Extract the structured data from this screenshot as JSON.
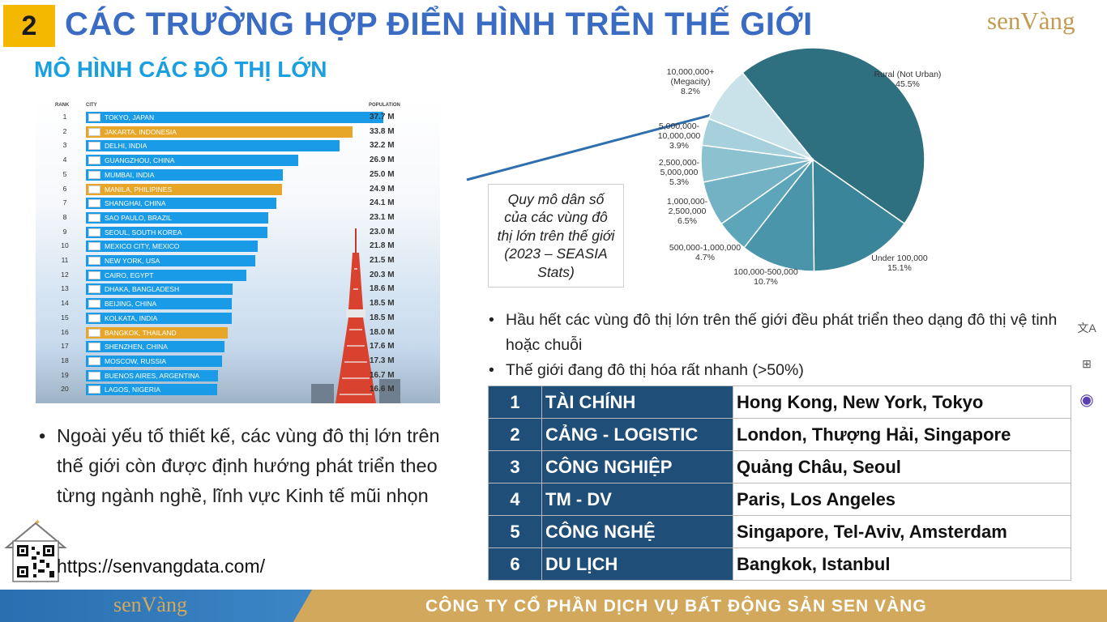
{
  "header": {
    "section_number": "2",
    "title": "CÁC TRƯỜNG HỢP ĐIỂN HÌNH TRÊN THẾ GIỚI",
    "subtitle": "MÔ HÌNH CÁC ĐÔ THỊ LỚN",
    "logo": "senVàng"
  },
  "ranking": {
    "headers": {
      "rank": "RANK",
      "city": "CITY",
      "population": "POPULATION"
    },
    "rows": [
      {
        "rank": "1",
        "city": "TOKYO, JAPAN",
        "population": "37.7 M",
        "value": 37.7,
        "color": "#1a9be8"
      },
      {
        "rank": "2",
        "city": "JAKARTA, INDONESIA",
        "population": "33.8 M",
        "value": 33.8,
        "color": "#e8a628"
      },
      {
        "rank": "3",
        "city": "DELHI, INDIA",
        "population": "32.2 M",
        "value": 32.2,
        "color": "#1a9be8"
      },
      {
        "rank": "4",
        "city": "GUANGZHOU, CHINA",
        "population": "26.9 M",
        "value": 26.9,
        "color": "#1a9be8"
      },
      {
        "rank": "5",
        "city": "MUMBAI, INDIA",
        "population": "25.0 M",
        "value": 25.0,
        "color": "#1a9be8"
      },
      {
        "rank": "6",
        "city": "MANILA, PHILIPINES",
        "population": "24.9 M",
        "value": 24.9,
        "color": "#e8a628"
      },
      {
        "rank": "7",
        "city": "SHANGHAI, CHINA",
        "population": "24.1 M",
        "value": 24.1,
        "color": "#1a9be8"
      },
      {
        "rank": "8",
        "city": "SAO PAULO, BRAZIL",
        "population": "23.1 M",
        "value": 23.1,
        "color": "#1a9be8"
      },
      {
        "rank": "9",
        "city": "SEOUL, SOUTH KOREA",
        "population": "23.0 M",
        "value": 23.0,
        "color": "#1a9be8"
      },
      {
        "rank": "10",
        "city": "MEXICO CITY, MEXICO",
        "population": "21.8 M",
        "value": 21.8,
        "color": "#1a9be8"
      },
      {
        "rank": "11",
        "city": "NEW YORK, USA",
        "population": "21.5 M",
        "value": 21.5,
        "color": "#1a9be8"
      },
      {
        "rank": "12",
        "city": "CAIRO, EGYPT",
        "population": "20.3 M",
        "value": 20.3,
        "color": "#1a9be8"
      },
      {
        "rank": "13",
        "city": "DHAKA, BANGLADESH",
        "population": "18.6 M",
        "value": 18.6,
        "color": "#1a9be8"
      },
      {
        "rank": "14",
        "city": "BEIJING, CHINA",
        "population": "18.5 M",
        "value": 18.5,
        "color": "#1a9be8"
      },
      {
        "rank": "15",
        "city": "KOLKATA, INDIA",
        "population": "18.5 M",
        "value": 18.5,
        "color": "#1a9be8"
      },
      {
        "rank": "16",
        "city": "BANGKOK, THAILAND",
        "population": "18.0 M",
        "value": 18.0,
        "color": "#e8a628"
      },
      {
        "rank": "17",
        "city": "SHENZHEN, CHINA",
        "population": "17.6 M",
        "value": 17.6,
        "color": "#1a9be8"
      },
      {
        "rank": "18",
        "city": "MOSCOW, RUSSIA",
        "population": "17.3 M",
        "value": 17.3,
        "color": "#1a9be8"
      },
      {
        "rank": "19",
        "city": "BUENOS AIRES, ARGENTINA",
        "population": "16.7 M",
        "value": 16.7,
        "color": "#1a9be8"
      },
      {
        "rank": "20",
        "city": "LAGOS, NIGERIA",
        "population": "16.6 M",
        "value": 16.6,
        "color": "#1a9be8"
      }
    ]
  },
  "chart_data": {
    "type": "pie",
    "slices": [
      {
        "label": "Rural (Not Urban)",
        "percent": "45.5%",
        "value": 45.5,
        "color": "#2e6f80"
      },
      {
        "label": "Under 100,000",
        "percent": "15.1%",
        "value": 15.1,
        "color": "#3a8599"
      },
      {
        "label": "100,000-500,000",
        "percent": "10.7%",
        "value": 10.7,
        "color": "#4a95aa"
      },
      {
        "label": "500,000-1,000,000",
        "percent": "4.7%",
        "value": 4.7,
        "color": "#5da5b9"
      },
      {
        "label": "1,000,000-2,500,000",
        "percent": "6.5%",
        "value": 6.5,
        "color": "#72b2c4"
      },
      {
        "label": "2,500,000-5,000,000",
        "percent": "5.3%",
        "value": 5.3,
        "color": "#8cc2d0"
      },
      {
        "label": "5,000,000-10,000,000",
        "percent": "3.9%",
        "value": 3.9,
        "color": "#a6d1dc"
      },
      {
        "label": "10,000,000+ (Megacity)",
        "percent": "8.2%",
        "value": 8.2,
        "color": "#c9e2e9"
      }
    ],
    "label_lines": [
      [
        "Rural (Not Urban)",
        "45.5%"
      ],
      [
        "Under 100,000",
        "15.1%"
      ],
      [
        "100,000-500,000",
        "10.7%"
      ],
      [
        "500,000-1,000,000",
        "4.7%"
      ],
      [
        "1,000,000-",
        "2,500,000",
        "6.5%"
      ],
      [
        "2,500,000-",
        "5,000,000",
        "5.3%"
      ],
      [
        "5,000,000-",
        "10,000,000",
        "3.9%"
      ],
      [
        "10,000,000+",
        "(Megacity)",
        "8.2%"
      ]
    ]
  },
  "caption": "Quy mô dân số của các vùng đô thị lớn trên thế giới (2023 – SEASIA Stats)",
  "bullets_right": [
    "Hầu hết các vùng đô thị lớn trên thế giới đều phát triển theo dạng đô thị vệ tinh hoặc chuỗi",
    "Thế giới đang đô thị hóa rất nhanh (>50%)"
  ],
  "table": [
    {
      "no": "1",
      "sector": "TÀI CHÍNH",
      "cities": "Hong Kong, New York, Tokyo"
    },
    {
      "no": "2",
      "sector": "CẢNG - LOGISTIC",
      "cities": "London, Thượng Hải, Singapore"
    },
    {
      "no": "3",
      "sector": "CÔNG NGHIỆP",
      "cities": "Quảng Châu, Seoul"
    },
    {
      "no": "4",
      "sector": "TM - DV",
      "cities": "Paris, Los Angeles"
    },
    {
      "no": "5",
      "sector": "CÔNG NGHỆ",
      "cities": "Singapore, Tel-Aviv, Amsterdam"
    },
    {
      "no": "6",
      "sector": "DU LỊCH",
      "cities": "Bangkok, Istanbul"
    }
  ],
  "bullet_left": "Ngoài yếu tố thiết kế, các vùng đô thị lớn trên thế giới còn được định hướng phát triển theo từng ngành nghề, lĩnh vực Kinh tế mũi nhọn",
  "url": "https://senvangdata.com/",
  "footer": {
    "logo": "senVàng",
    "company": "CÔNG TY CỔ PHẦN DỊCH VỤ BẤT ĐỘNG SẢN SEN VÀNG"
  },
  "side_icons": [
    "translate-icon",
    "apps-icon",
    "assistant-icon"
  ],
  "side_icon_labels": [
    "文A",
    "⊞",
    "◉"
  ]
}
